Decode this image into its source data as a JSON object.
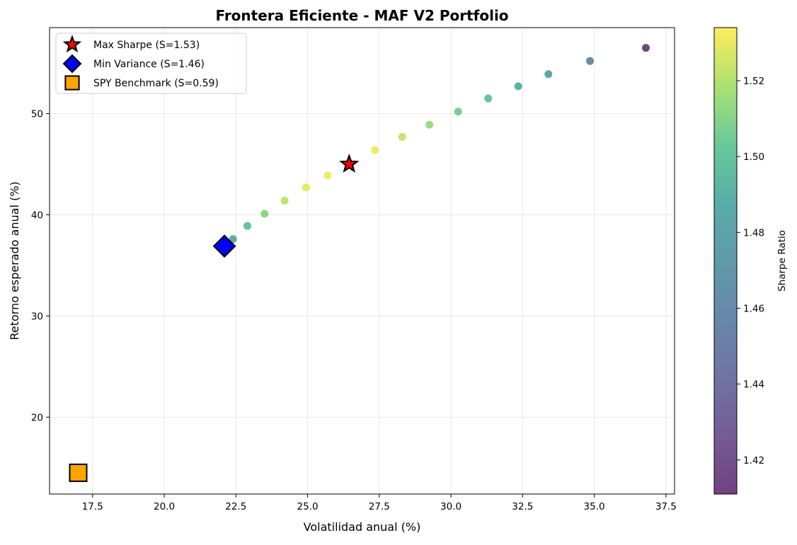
{
  "chart_data": {
    "type": "scatter",
    "title": "Frontera Eficiente - MAF V2 Portfolio",
    "xlabel": "Volatilidad anual (%)",
    "ylabel": "Retorno esperado anual (%)",
    "xlim": [
      16.0,
      37.8
    ],
    "ylim": [
      12.4,
      58.5
    ],
    "xticks": [
      17.5,
      20.0,
      22.5,
      25.0,
      27.5,
      30.0,
      32.5,
      35.0,
      37.5
    ],
    "xtick_labels": [
      "17.5",
      "20.0",
      "22.5",
      "25.0",
      "27.5",
      "30.0",
      "32.5",
      "35.0",
      "37.5"
    ],
    "yticks": [
      20,
      30,
      40,
      50
    ],
    "ytick_labels": [
      "20",
      "30",
      "40",
      "50"
    ],
    "grid": true,
    "legend_position": "top-left",
    "colormap": "viridis",
    "colorbar": {
      "label": "Sharpe Ratio",
      "range": [
        1.411,
        1.534
      ],
      "ticks": [
        1.42,
        1.44,
        1.46,
        1.48,
        1.5,
        1.52
      ],
      "tick_labels": [
        "1.42",
        "1.44",
        "1.46",
        "1.48",
        "1.50",
        "1.52"
      ]
    },
    "frontier": {
      "points": [
        {
          "x": 22.4,
          "y": 37.6,
          "sharpe": 1.49
        },
        {
          "x": 22.9,
          "y": 38.9,
          "sharpe": 1.5
        },
        {
          "x": 23.5,
          "y": 40.1,
          "sharpe": 1.512
        },
        {
          "x": 24.2,
          "y": 41.4,
          "sharpe": 1.522
        },
        {
          "x": 24.95,
          "y": 42.7,
          "sharpe": 1.529
        },
        {
          "x": 25.7,
          "y": 43.9,
          "sharpe": 1.532
        },
        {
          "x": 27.35,
          "y": 46.4,
          "sharpe": 1.531
        },
        {
          "x": 28.3,
          "y": 47.7,
          "sharpe": 1.524
        },
        {
          "x": 29.25,
          "y": 48.9,
          "sharpe": 1.515
        },
        {
          "x": 30.25,
          "y": 50.2,
          "sharpe": 1.507
        },
        {
          "x": 31.3,
          "y": 51.5,
          "sharpe": 1.5
        },
        {
          "x": 32.35,
          "y": 52.7,
          "sharpe": 1.491
        },
        {
          "x": 33.4,
          "y": 53.9,
          "sharpe": 1.483
        },
        {
          "x": 34.85,
          "y": 55.2,
          "sharpe": 1.462
        },
        {
          "x": 36.8,
          "y": 56.5,
          "sharpe": 1.412
        }
      ]
    },
    "markers": [
      {
        "name": "Max Sharpe (S=1.53)",
        "shape": "star",
        "color": "#ff0000",
        "x": 26.45,
        "y": 45.0
      },
      {
        "name": "Min Variance (S=1.46)",
        "shape": "diamond",
        "color": "#0000ff",
        "x": 22.1,
        "y": 36.9
      },
      {
        "name": "SPY Benchmark (S=0.59)",
        "shape": "square",
        "color": "#ffa500",
        "x": 17.0,
        "y": 14.5
      }
    ]
  }
}
